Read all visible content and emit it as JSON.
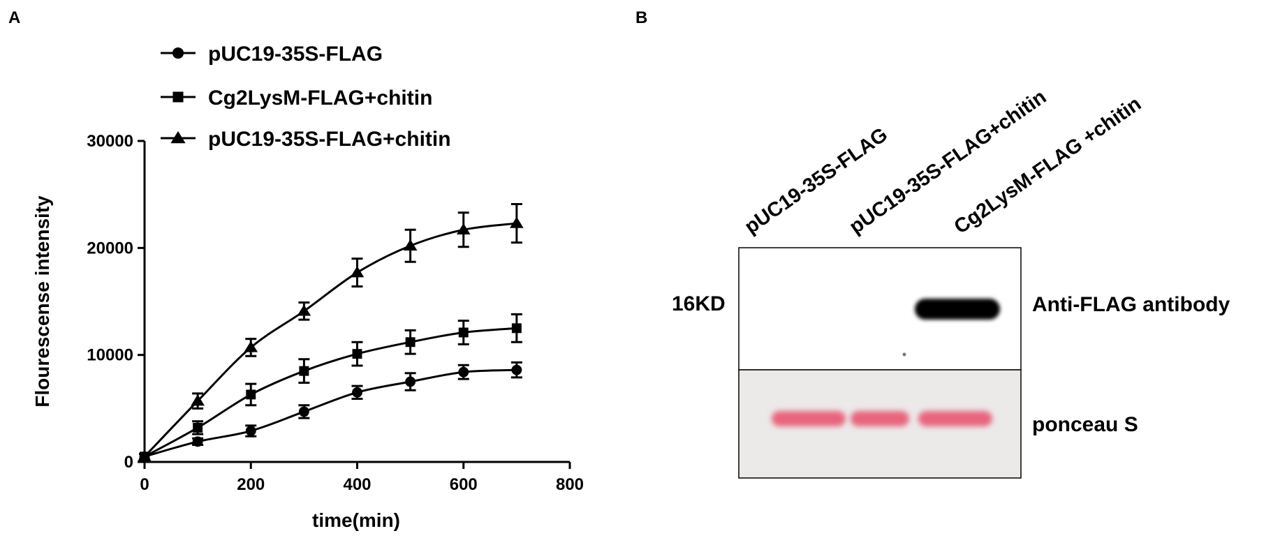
{
  "figure": {
    "panel_a_label": "A",
    "panel_b_label": "B"
  },
  "chart_data": {
    "type": "line",
    "title": "",
    "xlabel": "time(min)",
    "ylabel": "Flourescense intensity",
    "xlim": [
      0,
      800
    ],
    "ylim": [
      0,
      30000
    ],
    "x_ticks": [
      0,
      200,
      400,
      600,
      800
    ],
    "y_ticks": [
      0,
      10000,
      20000,
      30000
    ],
    "x_tick_labels": [
      "0",
      "200",
      "400",
      "600",
      "800"
    ],
    "y_tick_labels": [
      "0",
      "10000",
      "20000",
      "30000"
    ],
    "grid": false,
    "legend_position": "top-left",
    "x": [
      0,
      100,
      200,
      300,
      400,
      500,
      600,
      700
    ],
    "series": [
      {
        "name": "pUC19-35S-FLAG",
        "marker": "circle",
        "values": [
          500,
          1900,
          2900,
          4700,
          6500,
          7500,
          8400,
          8600
        ],
        "errors": [
          250,
          300,
          500,
          600,
          600,
          800,
          650,
          700
        ]
      },
      {
        "name": "Cg2LysM-FLAG+chitin",
        "marker": "square",
        "values": [
          500,
          3200,
          6300,
          8500,
          10100,
          11200,
          12100,
          12500
        ],
        "errors": [
          250,
          600,
          1000,
          1100,
          1100,
          1100,
          1100,
          1300
        ]
      },
      {
        "name": "pUC19-35S-FLAG+chitin",
        "marker": "triangle",
        "values": [
          500,
          5700,
          10700,
          14100,
          17700,
          20200,
          21700,
          22300
        ],
        "errors": [
          250,
          700,
          800,
          800,
          1300,
          1500,
          1600,
          1800
        ]
      }
    ]
  },
  "blot": {
    "lanes": [
      "pUC19-35S-FLAG",
      "pUC19-35S-FLAG+chitin",
      "Cg2LysM-FLAG +chitin"
    ],
    "marker_label": "16KD",
    "top_label": "Anti-FLAG antibody",
    "bottom_label": "ponceau S",
    "flag_band_lane_levels": [
      0,
      0,
      1
    ],
    "ponceau_band_color": "#e8657e",
    "membrane_color": "#ece9e9"
  }
}
